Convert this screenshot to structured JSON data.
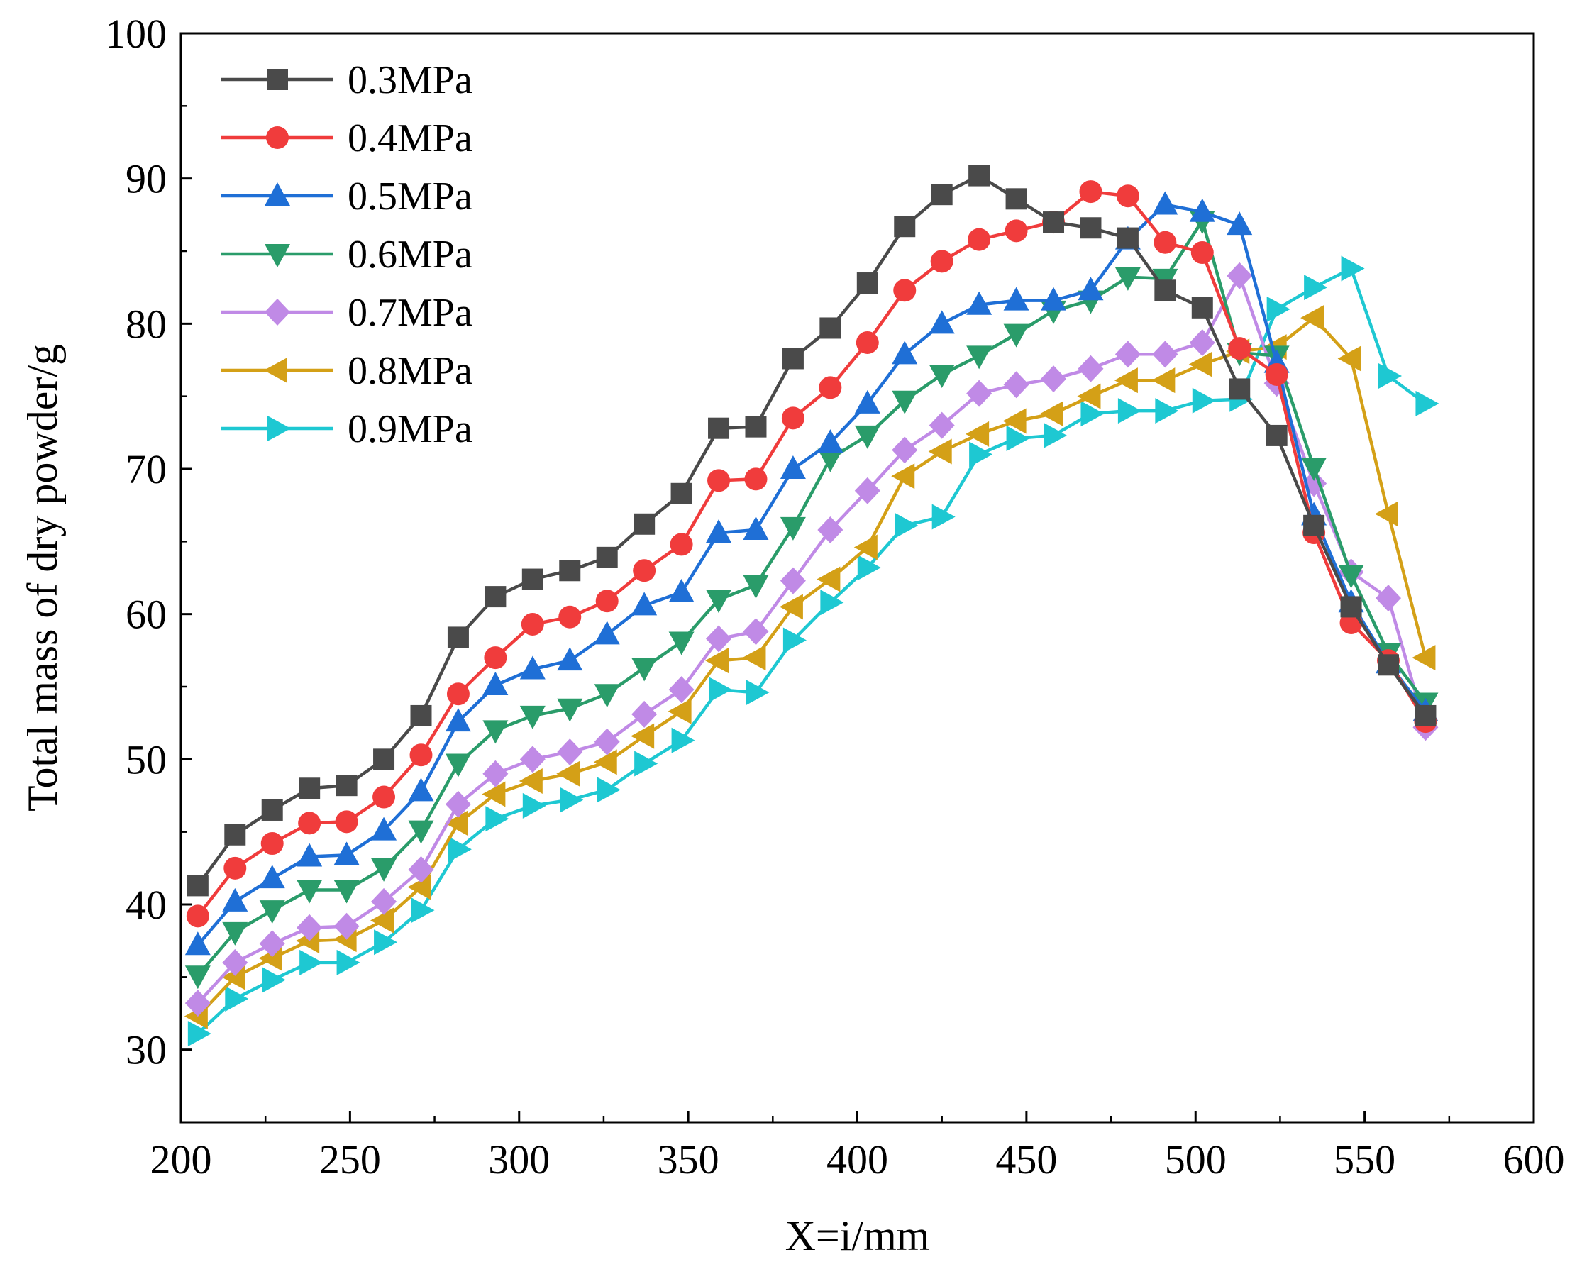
{
  "chart_data": {
    "type": "line",
    "xlabel": "X=i/mm",
    "ylabel": "Total mass of dry powder/g",
    "xlim": [
      200,
      600
    ],
    "ylim": [
      25,
      100
    ],
    "xticks": [
      200,
      250,
      300,
      350,
      400,
      450,
      500,
      550,
      600
    ],
    "yticks": [
      30,
      40,
      50,
      60,
      70,
      80,
      90,
      100
    ],
    "grid": false,
    "legend_position": "top-left",
    "x": [
      205,
      216,
      227,
      238,
      249,
      260,
      271,
      282,
      293,
      304,
      315,
      326,
      337,
      348,
      359,
      370,
      381,
      392,
      403,
      414,
      425,
      436,
      447,
      458,
      469,
      480,
      491,
      502,
      513,
      524,
      535,
      546,
      557,
      568
    ],
    "series": [
      {
        "name": "0.3MPa",
        "color": "#4a4a4a",
        "marker": "square",
        "values": [
          41.3,
          44.8,
          46.5,
          48.0,
          48.2,
          50.0,
          53.0,
          58.4,
          61.2,
          62.4,
          63.0,
          63.9,
          66.2,
          68.3,
          72.8,
          72.9,
          77.6,
          79.7,
          82.8,
          86.7,
          88.9,
          90.2,
          88.6,
          87.0,
          86.6,
          85.9,
          82.3,
          81.1,
          75.5,
          72.3,
          66.1,
          60.5,
          56.5,
          53.0
        ]
      },
      {
        "name": "0.4MPa",
        "color": "#f03c3c",
        "marker": "circle",
        "values": [
          39.2,
          42.5,
          44.2,
          45.6,
          45.7,
          47.4,
          50.3,
          54.5,
          57.0,
          59.3,
          59.8,
          60.9,
          63.0,
          64.8,
          69.2,
          69.3,
          73.5,
          75.6,
          78.7,
          82.3,
          84.3,
          85.8,
          86.4,
          87.0,
          89.1,
          88.8,
          85.6,
          84.9,
          78.3,
          76.5,
          65.6,
          59.4,
          56.8,
          52.6
        ]
      },
      {
        "name": "0.5MPa",
        "color": "#1f6fd6",
        "marker": "triangle-up",
        "values": [
          37.2,
          40.2,
          41.8,
          43.3,
          43.4,
          45.1,
          47.8,
          52.6,
          55.1,
          56.2,
          56.8,
          58.6,
          60.6,
          61.5,
          65.6,
          65.8,
          70.0,
          71.8,
          74.5,
          77.9,
          80.0,
          81.3,
          81.6,
          81.6,
          82.3,
          85.8,
          88.2,
          87.7,
          86.8,
          77.3,
          66.8,
          60.8,
          56.6,
          53.3
        ]
      },
      {
        "name": "0.6MPa",
        "color": "#2a9c6a",
        "marker": "triangle-down",
        "values": [
          35.1,
          38.1,
          39.6,
          41.0,
          41.0,
          42.5,
          45.1,
          49.7,
          52.0,
          53.0,
          53.5,
          54.5,
          56.3,
          58.1,
          61.0,
          62.0,
          66.0,
          70.7,
          72.3,
          74.7,
          76.5,
          77.8,
          79.3,
          80.9,
          81.6,
          83.2,
          83.1,
          87.1,
          78.0,
          77.8,
          70.1,
          62.7,
          57.3,
          53.9
        ]
      },
      {
        "name": "0.7MPa",
        "color": "#c08ae6",
        "marker": "diamond",
        "values": [
          33.2,
          36.0,
          37.3,
          38.4,
          38.5,
          40.2,
          42.4,
          46.9,
          49.0,
          50.0,
          50.5,
          51.2,
          53.1,
          54.8,
          58.3,
          58.8,
          62.3,
          65.8,
          68.5,
          71.3,
          73.0,
          75.2,
          75.8,
          76.2,
          76.9,
          77.9,
          77.9,
          78.7,
          83.3,
          75.9,
          69.0,
          62.9,
          61.1,
          52.2
        ]
      },
      {
        "name": "0.8MPa",
        "color": "#d4a017",
        "marker": "triangle-left",
        "values": [
          32.3,
          35.0,
          36.3,
          37.5,
          37.6,
          38.9,
          41.2,
          45.6,
          47.6,
          48.5,
          49.0,
          49.8,
          51.6,
          53.3,
          56.8,
          57.0,
          60.5,
          62.4,
          64.6,
          69.5,
          71.2,
          72.4,
          73.3,
          73.8,
          75.0,
          76.1,
          76.1,
          77.2,
          78.1,
          78.4,
          80.4,
          77.6,
          66.9,
          57.0
        ]
      },
      {
        "name": "0.9MPa",
        "color": "#1ec8d2",
        "marker": "triangle-right",
        "values": [
          31.1,
          33.5,
          34.8,
          36.0,
          36.0,
          37.4,
          39.6,
          43.8,
          45.9,
          46.8,
          47.2,
          47.9,
          49.7,
          51.3,
          54.8,
          54.6,
          58.2,
          60.8,
          63.2,
          66.1,
          66.7,
          71.0,
          72.1,
          72.3,
          73.8,
          74.0,
          74.0,
          74.7,
          74.8,
          81.0,
          82.5,
          83.8,
          76.4,
          74.5
        ]
      }
    ]
  }
}
